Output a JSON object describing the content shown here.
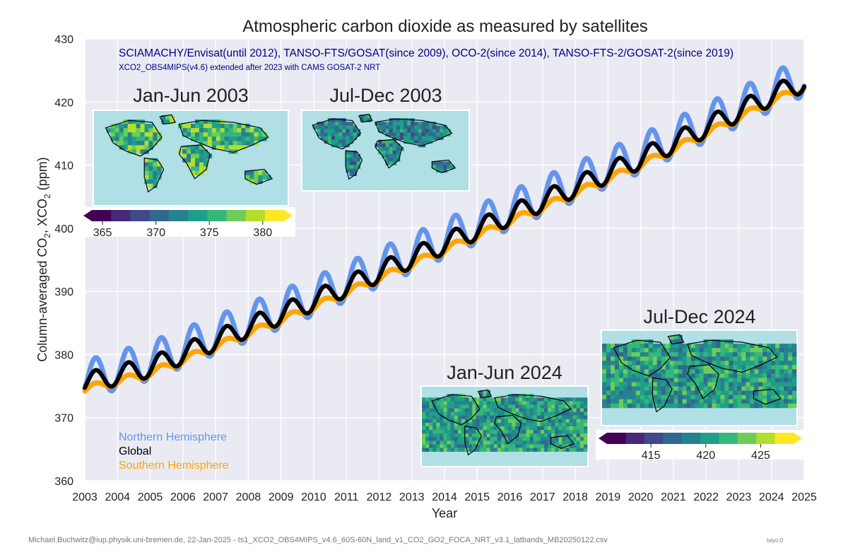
{
  "chart_data": {
    "type": "line",
    "title": "Atmospheric carbon dioxide as measured by satellites",
    "subtitle1": "SCIAMACHY/Envisat(until 2012), TANSO-FTS/GOSAT(since 2009), OCO-2(since 2014), TANSO-FTS-2/GOSAT-2(since 2019)",
    "subtitle2": "XCO2_OBS4MIPS(v4.6) extended after 2023 with CAMS GOSAT-2 NRT",
    "xlabel": "Year",
    "ylabel_prefix": "Column-averaged CO",
    "ylabel_mid": ", XCO",
    "ylabel_suffix": " (ppm)",
    "ylabel_sub": "2",
    "xlim": [
      2003,
      2025
    ],
    "ylim": [
      360,
      430
    ],
    "x_ticks": [
      2003,
      2004,
      2005,
      2006,
      2007,
      2008,
      2009,
      2010,
      2011,
      2012,
      2013,
      2014,
      2015,
      2016,
      2017,
      2018,
      2019,
      2020,
      2021,
      2022,
      2023,
      2024,
      2025
    ],
    "y_ticks": [
      360,
      370,
      380,
      390,
      400,
      410,
      420,
      430
    ],
    "grid": true,
    "legend_placement": "bottom-left",
    "colors": {
      "nh": "#6495ED",
      "global": "#000000",
      "sh": "#FFA500",
      "plot_bg": "#EAEAF2"
    },
    "series": [
      {
        "name": "Northern Hemisphere",
        "key": "nh",
        "seasonal_amplitude": 3.0
      },
      {
        "name": "Global",
        "key": "global",
        "seasonal_amplitude": 1.6
      },
      {
        "name": "Southern Hemisphere",
        "key": "sh",
        "seasonal_amplitude": 0.6
      }
    ],
    "trend_points": {
      "x": [
        2003,
        2005,
        2010,
        2015,
        2020,
        2024,
        2025
      ],
      "nh": [
        376.0,
        379.0,
        389.2,
        400.6,
        411.8,
        421.6,
        424.0
      ],
      "global": [
        375.5,
        378.0,
        388.5,
        399.8,
        411.0,
        421.0,
        423.2
      ],
      "sh": [
        374.5,
        377.0,
        387.5,
        398.8,
        410.0,
        420.0,
        422.4
      ]
    },
    "insets": [
      {
        "title": "Jan-Jun 2003"
      },
      {
        "title": "Jul-Dec 2003"
      },
      {
        "title": "Jan-Jun 2024"
      },
      {
        "title": "Jul-Dec 2024"
      }
    ],
    "colorbars": [
      {
        "ticks": [
          365,
          370,
          375,
          380
        ],
        "range": [
          364,
          382
        ]
      },
      {
        "ticks": [
          415,
          420,
          425
        ],
        "range": [
          411,
          428
        ]
      }
    ],
    "viridis": [
      "#440154",
      "#482878",
      "#3E4A89",
      "#31688E",
      "#26828E",
      "#1F9E89",
      "#35B779",
      "#6DCD59",
      "#B4DE2C",
      "#FDE725"
    ]
  },
  "footer": {
    "credit": "Michael.Buchwitz@iup.physik.uni-bremen.de, 22-Jan-2025 - ts1_XCO2_OBS4MIPS_v4.6_60S-60N_land_v1_CO2_GO2_FOCA_NRT_v3.1_latbands_MB20250122.csv",
    "tag": "tslyo:0"
  }
}
